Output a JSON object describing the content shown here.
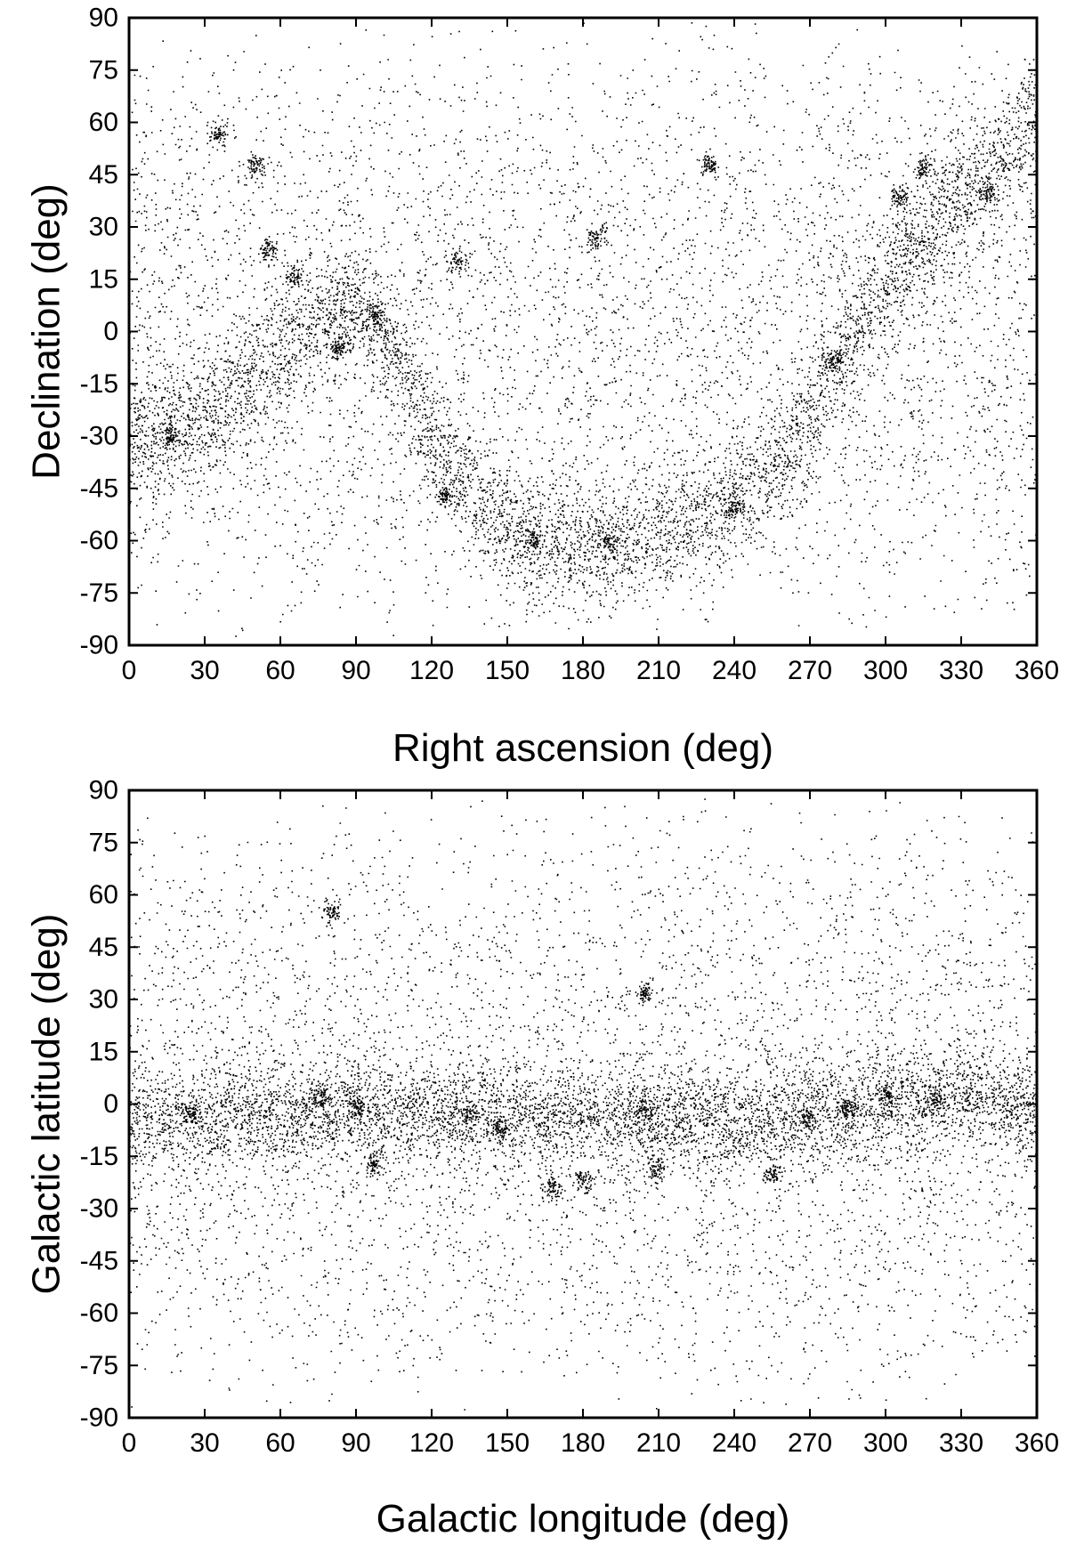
{
  "figure": {
    "background": "#ffffff",
    "ink": "#000000"
  },
  "chart_data": [
    {
      "type": "scatter",
      "title": "",
      "xlabel": "Right ascension  (deg)",
      "ylabel": "Declination  (deg)",
      "xlim": [
        0,
        360
      ],
      "ylim": [
        -90,
        90
      ],
      "xticks": [
        0,
        30,
        60,
        90,
        120,
        150,
        180,
        210,
        240,
        270,
        300,
        330,
        360
      ],
      "yticks": [
        -90,
        -75,
        -60,
        -45,
        -30,
        -15,
        0,
        15,
        30,
        45,
        60,
        75,
        90
      ],
      "grid": false,
      "legend": "none",
      "marker_color": "#000000",
      "band": {
        "x": [
          0,
          30,
          60,
          90,
          100,
          120,
          140,
          160,
          180,
          200,
          220,
          240,
          260,
          270,
          280,
          300,
          330,
          360
        ],
        "y": [
          -30,
          -25,
          -5,
          10,
          0,
          -30,
          -50,
          -60,
          -62,
          -60,
          -55,
          -48,
          -35,
          -25,
          -10,
          15,
          40,
          62
        ]
      },
      "clusters": [
        {
          "x": 160,
          "y": -60
        },
        {
          "x": 98,
          "y": 5
        },
        {
          "x": 83,
          "y": -4
        },
        {
          "x": 16,
          "y": -30
        },
        {
          "x": 280,
          "y": -8
        },
        {
          "x": 50,
          "y": 48
        },
        {
          "x": 55,
          "y": 24
        },
        {
          "x": 65,
          "y": 16
        },
        {
          "x": 35,
          "y": 57
        },
        {
          "x": 305,
          "y": 39
        },
        {
          "x": 125,
          "y": -47
        },
        {
          "x": 190,
          "y": -60
        },
        {
          "x": 185,
          "y": 27
        },
        {
          "x": 130,
          "y": 20
        },
        {
          "x": 230,
          "y": 48
        },
        {
          "x": 315,
          "y": 47
        },
        {
          "x": 340,
          "y": 40
        },
        {
          "x": 240,
          "y": -50
        }
      ]
    },
    {
      "type": "scatter",
      "title": "",
      "xlabel": "Galactic longitude  (deg)",
      "ylabel": "Galactic latitude  (deg)",
      "xlim": [
        0,
        360
      ],
      "ylim": [
        -90,
        90
      ],
      "xticks": [
        0,
        30,
        60,
        90,
        120,
        150,
        180,
        210,
        240,
        270,
        300,
        330,
        360
      ],
      "yticks": [
        -90,
        -75,
        -60,
        -45,
        -30,
        -15,
        0,
        15,
        30,
        45,
        60,
        75,
        90
      ],
      "grid": false,
      "legend": "none",
      "marker_color": "#000000",
      "band": {
        "x": [
          0,
          60,
          120,
          180,
          210,
          240,
          270,
          300,
          330,
          360
        ],
        "y": [
          -5,
          -2,
          -2,
          -3,
          -3,
          -5,
          -3,
          0,
          2,
          -3
        ]
      },
      "clusters": [
        {
          "x": 25,
          "y": -3
        },
        {
          "x": 75,
          "y": 2
        },
        {
          "x": 90,
          "y": -1
        },
        {
          "x": 135,
          "y": -3
        },
        {
          "x": 147,
          "y": -7
        },
        {
          "x": 205,
          "y": -2
        },
        {
          "x": 208,
          "y": -19
        },
        {
          "x": 168,
          "y": -24
        },
        {
          "x": 180,
          "y": -22
        },
        {
          "x": 97,
          "y": -17
        },
        {
          "x": 80,
          "y": 55
        },
        {
          "x": 204,
          "y": 32
        },
        {
          "x": 270,
          "y": -4
        },
        {
          "x": 285,
          "y": -1
        },
        {
          "x": 300,
          "y": 3
        },
        {
          "x": 320,
          "y": 1
        },
        {
          "x": 255,
          "y": -20
        }
      ]
    }
  ]
}
